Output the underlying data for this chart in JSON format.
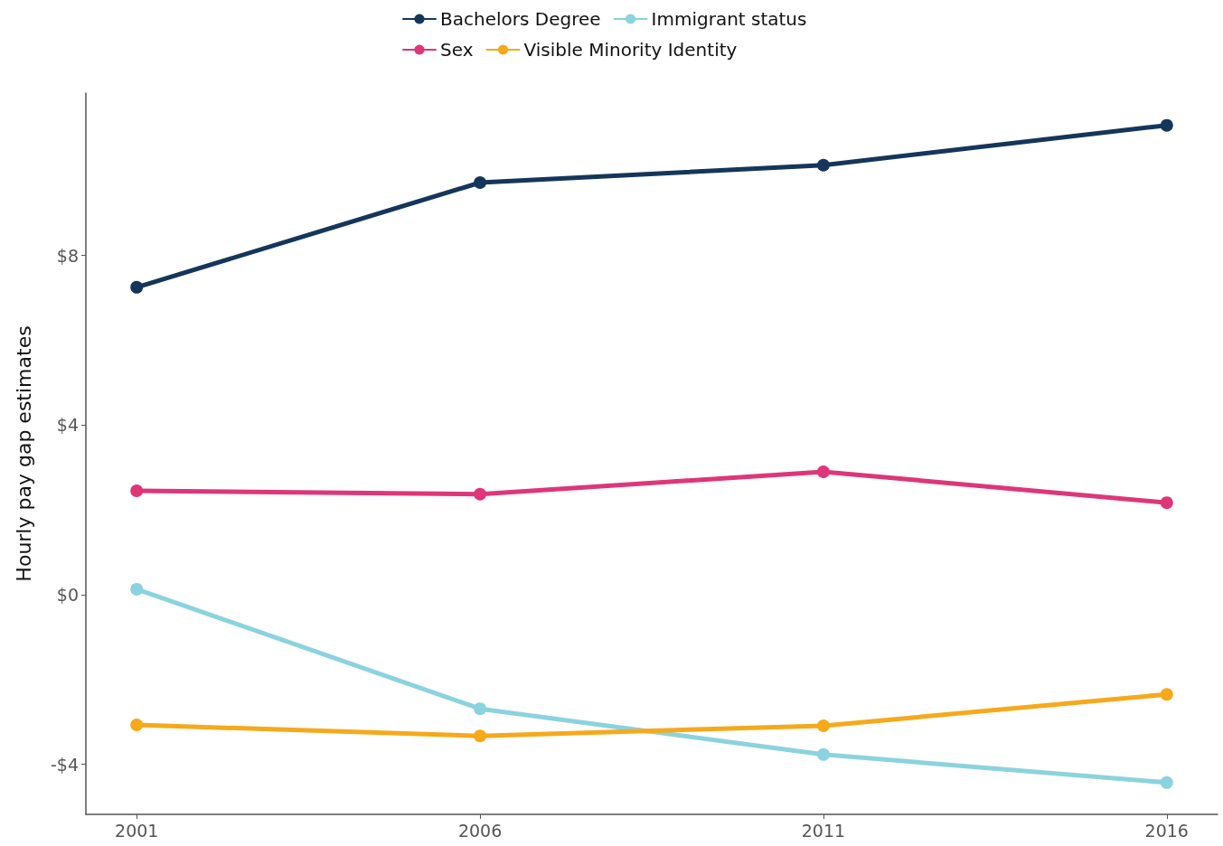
{
  "chart_data": {
    "type": "line",
    "ylabel": "Hourly pay gap estimates",
    "x": [
      2001,
      2006,
      2011,
      2016
    ],
    "xlim": [
      2000.26,
      2016.74
    ],
    "xticks": [
      2001,
      2006,
      2011,
      2016
    ],
    "ylim": [
      -5.18,
      11.83
    ],
    "yticks": [
      {
        "value": -4,
        "label": "-$4"
      },
      {
        "value": 0,
        "label": "$0"
      },
      {
        "value": 4,
        "label": "$4"
      },
      {
        "value": 8,
        "label": "$8"
      }
    ],
    "grid": false,
    "legend": "top",
    "marker": "circle",
    "line_style": "solid",
    "series": [
      {
        "name": "Bachelors Degree",
        "color": "#15365a",
        "values": [
          7.25,
          9.72,
          10.13,
          11.07
        ]
      },
      {
        "name": "Sex",
        "color": "#de3679",
        "values": [
          2.45,
          2.37,
          2.9,
          2.17
        ]
      },
      {
        "name": "Immigrant status",
        "color": "#8bd3de",
        "values": [
          0.13,
          -2.69,
          -3.77,
          -4.43
        ]
      },
      {
        "name": "Visible Minority Identity",
        "color": "#f6a91b",
        "values": [
          -3.07,
          -3.33,
          -3.09,
          -2.35
        ]
      }
    ]
  }
}
